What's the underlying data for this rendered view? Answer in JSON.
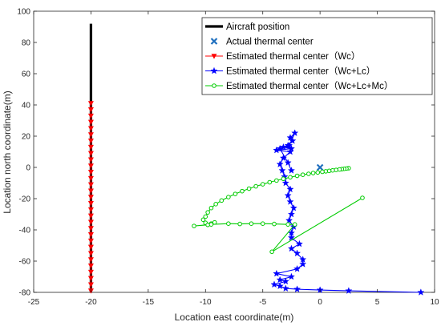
{
  "chart_data": {
    "type": "line",
    "title": "",
    "xlabel": "Location east coordinate(m)",
    "ylabel": "Location north coordinate(m)",
    "xlim": [
      -25,
      10
    ],
    "ylim": [
      -80,
      100
    ],
    "xticks": [
      -25,
      -20,
      -15,
      -10,
      -5,
      0,
      5,
      10
    ],
    "yticks": [
      -80,
      -60,
      -40,
      -20,
      0,
      20,
      40,
      60,
      80,
      100
    ],
    "grid": false,
    "legend_position": "top-right",
    "series": [
      {
        "name": "Aircraft position",
        "color": "#000000",
        "style": "thick-line",
        "points": [
          [
            -20,
            -80
          ],
          [
            -20,
            92
          ]
        ]
      },
      {
        "name": "Actual thermal center",
        "color": "#1f6fbf",
        "style": "x-marker",
        "points": [
          [
            0,
            0
          ]
        ]
      },
      {
        "name": "Estimated thermal center（Wc）",
        "color": "#ff0000",
        "style": "line-triangle-down",
        "points": [
          [
            -20,
            41
          ],
          [
            -20,
            37
          ],
          [
            -20,
            33
          ],
          [
            -20,
            29
          ],
          [
            -20,
            25
          ],
          [
            -20,
            21
          ],
          [
            -20,
            17
          ],
          [
            -20,
            13
          ],
          [
            -20,
            9
          ],
          [
            -20,
            5
          ],
          [
            -20,
            1
          ],
          [
            -20,
            -3
          ],
          [
            -20,
            -7
          ],
          [
            -20,
            -11
          ],
          [
            -20,
            -15
          ],
          [
            -20,
            -19
          ],
          [
            -20,
            -23
          ],
          [
            -20,
            -27
          ],
          [
            -20,
            -31
          ],
          [
            -20,
            -35
          ],
          [
            -20,
            -39
          ],
          [
            -20,
            -43
          ],
          [
            -20,
            -47
          ],
          [
            -20,
            -51
          ],
          [
            -20,
            -55
          ],
          [
            -20,
            -59
          ],
          [
            -20,
            -63
          ],
          [
            -20,
            -67
          ],
          [
            -20,
            -71
          ],
          [
            -20,
            -75
          ],
          [
            -20,
            -79
          ]
        ]
      },
      {
        "name": "Estimated thermal center（Wc+Lc）",
        "color": "#0000ff",
        "style": "line-star",
        "points": [
          [
            8.8,
            -80
          ],
          [
            2.5,
            -79
          ],
          [
            0,
            -78.5
          ],
          [
            -2,
            -78
          ],
          [
            -3,
            -77.5
          ],
          [
            -3.5,
            -76
          ],
          [
            -4,
            -75
          ],
          [
            -3,
            -73
          ],
          [
            -3.5,
            -72
          ],
          [
            -2.5,
            -70
          ],
          [
            -3.8,
            -68
          ],
          [
            -2,
            -65
          ],
          [
            -1.5,
            -62
          ],
          [
            -1.5,
            -59
          ],
          [
            -2,
            -55
          ],
          [
            -2.5,
            -52
          ],
          [
            -1.8,
            -49
          ],
          [
            -2.5,
            -45
          ],
          [
            -2.5,
            -42
          ],
          [
            -2.3,
            -38
          ],
          [
            -2.7,
            -34
          ],
          [
            -2.5,
            -30
          ],
          [
            -2.3,
            -26
          ],
          [
            -2.6,
            -22
          ],
          [
            -2.8,
            -18
          ],
          [
            -2.6,
            -14
          ],
          [
            -3,
            -10
          ],
          [
            -3.1,
            -6
          ],
          [
            -3.3,
            -2
          ],
          [
            -3.5,
            2
          ],
          [
            -3.2,
            6
          ],
          [
            -2.6,
            10
          ],
          [
            -3.8,
            11
          ],
          [
            -2.5,
            12
          ],
          [
            -3.2,
            13
          ],
          [
            -2.8,
            14
          ],
          [
            -2.4,
            17
          ],
          [
            -2.6,
            19
          ],
          [
            -2.2,
            22
          ],
          [
            -2.7,
            14
          ],
          [
            -3.5,
            12
          ],
          [
            -2.8,
            3
          ],
          [
            -2.5,
            -2
          ]
        ]
      },
      {
        "name": "Estimated thermal center（Wc+Lc+Mc）",
        "color": "#00cc00",
        "style": "line-circle",
        "points": [
          [
            2.5,
            -0.5
          ],
          [
            2.3,
            -0.7
          ],
          [
            2.1,
            -0.9
          ],
          [
            1.9,
            -1.1
          ],
          [
            1.7,
            -1.3
          ],
          [
            1.4,
            -1.6
          ],
          [
            1.1,
            -1.9
          ],
          [
            0.8,
            -2.2
          ],
          [
            0.5,
            -2.5
          ],
          [
            0.2,
            -2.8
          ],
          [
            -0.2,
            -3.2
          ],
          [
            -0.6,
            -3.6
          ],
          [
            -1.0,
            -4.1
          ],
          [
            -1.5,
            -4.7
          ],
          [
            -2.0,
            -5.4
          ],
          [
            -2.6,
            -6.3
          ],
          [
            -3.2,
            -7.3
          ],
          [
            -3.8,
            -8.4
          ],
          [
            -4.4,
            -9.5
          ],
          [
            -5.0,
            -10.8
          ],
          [
            -5.6,
            -12.1
          ],
          [
            -6.2,
            -13.6
          ],
          [
            -6.8,
            -15.2
          ],
          [
            -7.4,
            -17.0
          ],
          [
            -8.0,
            -19.0
          ],
          [
            -8.6,
            -21.2
          ],
          [
            -9.1,
            -23.5
          ],
          [
            -9.5,
            -26.0
          ],
          [
            -9.8,
            -28.8
          ],
          [
            -10.0,
            -31.5
          ],
          [
            -10.2,
            -33.5
          ],
          [
            -10.0,
            -35.5
          ],
          [
            -9.5,
            -36.0
          ],
          [
            -9.2,
            -35.2
          ],
          [
            -9.8,
            -36.8
          ],
          [
            -11.0,
            -37.5
          ],
          [
            -9.5,
            -36.5
          ],
          [
            -8.0,
            -36.0
          ],
          [
            -7.0,
            -36.2
          ],
          [
            -6.0,
            -36.0
          ],
          [
            -5.0,
            -36.0
          ],
          [
            -4.0,
            -36.2
          ],
          [
            -2.8,
            -36.5
          ],
          [
            -2.2,
            -36.5
          ],
          [
            -4.2,
            -54.0
          ],
          [
            3.7,
            -19.5
          ]
        ]
      }
    ]
  }
}
